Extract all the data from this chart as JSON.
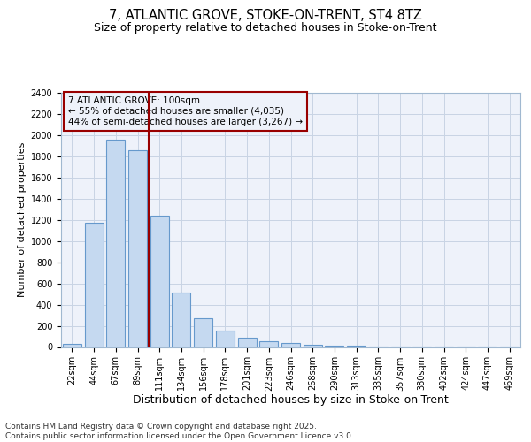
{
  "title": "7, ATLANTIC GROVE, STOKE-ON-TRENT, ST4 8TZ",
  "subtitle": "Size of property relative to detached houses in Stoke-on-Trent",
  "xlabel": "Distribution of detached houses by size in Stoke-on-Trent",
  "ylabel": "Number of detached properties",
  "bins": [
    "22sqm",
    "44sqm",
    "67sqm",
    "89sqm",
    "111sqm",
    "134sqm",
    "156sqm",
    "178sqm",
    "201sqm",
    "223sqm",
    "246sqm",
    "268sqm",
    "290sqm",
    "313sqm",
    "335sqm",
    "357sqm",
    "380sqm",
    "402sqm",
    "424sqm",
    "447sqm",
    "469sqm"
  ],
  "values": [
    30,
    1175,
    1960,
    1855,
    1240,
    515,
    270,
    155,
    90,
    55,
    40,
    20,
    15,
    10,
    5,
    5,
    5,
    5,
    5,
    5,
    5
  ],
  "bar_color": "#c5d9f0",
  "bar_edge_color": "#6699cc",
  "grid_color": "#c8d4e4",
  "background_color": "#ffffff",
  "plot_bg_color": "#eef2fa",
  "vline_color": "#990000",
  "vline_x": 3.5,
  "annotation_text": "7 ATLANTIC GROVE: 100sqm\n← 55% of detached houses are smaller (4,035)\n44% of semi-detached houses are larger (3,267) →",
  "annotation_box_edge_color": "#990000",
  "ylim_max": 2400,
  "yticks": [
    0,
    200,
    400,
    600,
    800,
    1000,
    1200,
    1400,
    1600,
    1800,
    2000,
    2200,
    2400
  ],
  "footer_line1": "Contains HM Land Registry data © Crown copyright and database right 2025.",
  "footer_line2": "Contains public sector information licensed under the Open Government Licence v3.0.",
  "title_fontsize": 10.5,
  "subtitle_fontsize": 9,
  "xlabel_fontsize": 9,
  "ylabel_fontsize": 8,
  "tick_fontsize": 7,
  "annot_fontsize": 7.5,
  "footer_fontsize": 6.5
}
